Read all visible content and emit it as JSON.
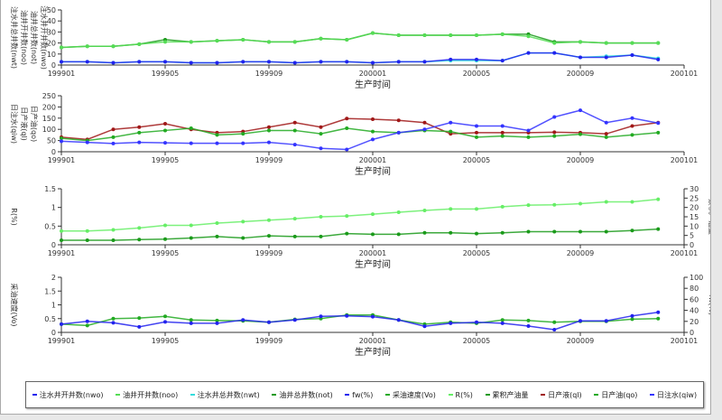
{
  "x_ticks": [
    "199901",
    "199905",
    "199909",
    "200001",
    "200005",
    "200009",
    "200101"
  ],
  "chart_data": [
    {
      "type": "line",
      "xlabel": "生产时间",
      "ylim": [
        0,
        50
      ],
      "yticks": [
        0,
        10,
        20,
        30,
        40,
        50
      ],
      "ylabels": [
        "注水井总井数(nwt)",
        "油井开井数(noo)",
        "油井总井数(not)",
        "注水井开井数(nwo)"
      ],
      "x": [
        "199901",
        "199902",
        "199903",
        "199904",
        "199905",
        "199906",
        "199907",
        "199908",
        "199909",
        "199910",
        "199911",
        "199912",
        "200001",
        "200002",
        "200003",
        "200004",
        "200005",
        "200006",
        "200007",
        "200008",
        "200009",
        "200010",
        "200011",
        "200012"
      ],
      "series": [
        {
          "name": "油井总井数(not)",
          "color": "#1a9a1a",
          "axis": "left",
          "values": [
            16,
            17,
            17,
            19,
            23,
            21,
            22,
            23,
            21,
            21,
            24,
            23,
            29,
            27,
            27,
            27,
            27,
            28,
            28,
            21,
            21,
            20,
            20,
            20
          ]
        },
        {
          "name": "油井开井数(noo)",
          "color": "#55dd55",
          "axis": "left",
          "values": [
            16,
            17,
            17,
            19,
            21,
            21,
            22,
            23,
            21,
            21,
            24,
            23,
            29,
            27,
            27,
            27,
            27,
            28,
            26,
            20,
            21,
            20,
            20,
            20
          ]
        },
        {
          "name": "注水井总井数(nwt)",
          "color": "#33dddd",
          "axis": "left",
          "values": [
            3,
            3,
            2,
            3,
            3,
            2,
            2,
            3,
            3,
            2,
            3,
            3,
            2,
            3,
            3,
            4,
            4,
            4,
            11,
            11,
            7,
            8,
            9,
            6
          ]
        },
        {
          "name": "注水井开井数(nwo)",
          "color": "#2222ee",
          "axis": "left",
          "values": [
            3,
            3,
            2,
            3,
            3,
            2,
            2,
            3,
            3,
            2,
            3,
            3,
            2,
            3,
            3,
            5,
            5,
            4,
            11,
            11,
            7,
            7,
            9,
            5
          ]
        }
      ]
    },
    {
      "type": "line",
      "xlabel": "生产时间",
      "ylim": [
        0,
        250
      ],
      "yticks": [
        0,
        50,
        100,
        150,
        200,
        250
      ],
      "ylabels": [
        "日注水(qiw)",
        "日产液(ql)",
        "日产油(qo)"
      ],
      "series": [
        {
          "name": "日产液(ql)",
          "color": "#a01818",
          "axis": "left",
          "values": [
            65,
            55,
            100,
            110,
            125,
            100,
            85,
            90,
            110,
            130,
            110,
            148,
            145,
            140,
            130,
            80,
            85,
            85,
            85,
            87,
            85,
            80,
            115,
            130
          ]
        },
        {
          "name": "日产油(qo)",
          "color": "#22aa22",
          "axis": "left",
          "values": [
            60,
            50,
            65,
            85,
            95,
            105,
            75,
            80,
            95,
            95,
            80,
            105,
            90,
            85,
            95,
            90,
            65,
            70,
            65,
            70,
            78,
            65,
            75,
            85
          ]
        },
        {
          "name": "日注水(qiw)",
          "color": "#3333ff",
          "axis": "left",
          "values": [
            47,
            42,
            37,
            42,
            40,
            38,
            38,
            38,
            42,
            32,
            15,
            10,
            55,
            85,
            100,
            130,
            115,
            115,
            95,
            155,
            185,
            130,
            150,
            128
          ]
        }
      ]
    },
    {
      "type": "line",
      "xlabel": "生产时间",
      "ylim": [
        0,
        1.5
      ],
      "yticks": [
        0,
        0.5,
        1,
        1.5
      ],
      "ylim_right": [
        0,
        30
      ],
      "yticks_right": [
        0,
        5,
        10,
        15,
        20,
        25,
        30
      ],
      "ylabels": [
        "R(%)"
      ],
      "ylabel_right": "累积产油量",
      "series": [
        {
          "name": "R(%)",
          "color": "#66ee66",
          "axis": "left",
          "values": [
            0.37,
            0.37,
            0.4,
            0.45,
            0.52,
            0.52,
            0.58,
            0.62,
            0.66,
            0.7,
            0.75,
            0.77,
            0.82,
            0.87,
            0.92,
            0.96,
            0.96,
            1.02,
            1.06,
            1.07,
            1.1,
            1.15,
            1.15,
            1.22
          ]
        },
        {
          "name": "累积产油量",
          "color": "#1a9a1a",
          "axis": "right",
          "values": [
            2.4,
            2.4,
            2.4,
            2.8,
            3,
            3.6,
            4.4,
            3.6,
            4.8,
            4.4,
            4.4,
            6,
            5.6,
            5.6,
            6.4,
            6.4,
            6,
            6.4,
            7,
            7,
            7,
            7,
            7.6,
            8.4
          ]
        }
      ]
    },
    {
      "type": "line",
      "xlabel": "生产时间",
      "ylim": [
        0,
        2
      ],
      "yticks": [
        0,
        0.5,
        1,
        1.5,
        2
      ],
      "ylim_right": [
        0,
        100
      ],
      "yticks_right": [
        0,
        20,
        40,
        60,
        80,
        100
      ],
      "ylabels": [
        "采油速度(Vo)"
      ],
      "ylabel_right": "fw(%)",
      "series": [
        {
          "name": "采油速度(Vo)",
          "color": "#22aa22",
          "axis": "left",
          "values": [
            0.3,
            0.25,
            0.5,
            0.52,
            0.58,
            0.45,
            0.43,
            0.42,
            0.37,
            0.47,
            0.5,
            0.63,
            0.63,
            0.45,
            0.3,
            0.37,
            0.33,
            0.45,
            0.43,
            0.37,
            0.4,
            0.4,
            0.48,
            0.5
          ]
        },
        {
          "name": "fw(%)",
          "color": "#2222ee",
          "axis": "right",
          "values": [
            15,
            20,
            17.5,
            10,
            19,
            16.5,
            16.5,
            22.5,
            18.5,
            22.5,
            29,
            30,
            28.5,
            22.5,
            11,
            16.5,
            18.5,
            16.5,
            11.5,
            5,
            21,
            21,
            30,
            36.5
          ]
        }
      ]
    }
  ],
  "legend": [
    {
      "label": "注水井开井数(nwo)",
      "color": "#2222ee"
    },
    {
      "label": "油井开井数(noo)",
      "color": "#55dd55"
    },
    {
      "label": "注水井总井数(nwt)",
      "color": "#33dddd"
    },
    {
      "label": "油井总井数(not)",
      "color": "#1a9a1a"
    },
    {
      "label": "fw(%)",
      "color": "#2222ee"
    },
    {
      "label": "采油速度(Vo)",
      "color": "#22aa22"
    },
    {
      "label": "R(%)",
      "color": "#66ee66"
    },
    {
      "label": "累积产油量",
      "color": "#1a9a1a"
    },
    {
      "label": "日产液(ql)",
      "color": "#a01818"
    },
    {
      "label": "日产油(qo)",
      "color": "#22aa22"
    },
    {
      "label": "日注水(qiw)",
      "color": "#3333ff"
    }
  ]
}
